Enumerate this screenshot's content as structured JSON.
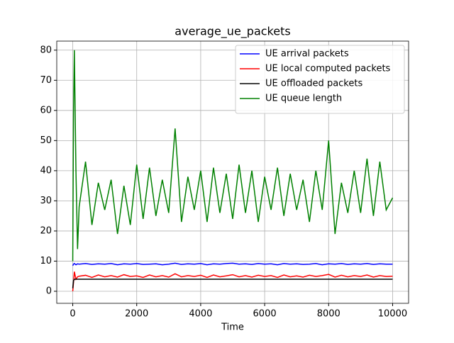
{
  "chart_data": {
    "type": "line",
    "title": "average_ue_packets",
    "x_label": "Time",
    "x": [
      0,
      25,
      50,
      100,
      150,
      200,
      400,
      600,
      800,
      1000,
      1200,
      1400,
      1600,
      1800,
      2000,
      2200,
      2400,
      2600,
      2800,
      3000,
      3200,
      3400,
      3600,
      3800,
      4000,
      4200,
      4400,
      4600,
      4800,
      5000,
      5200,
      5400,
      5600,
      5800,
      6000,
      6200,
      6400,
      6600,
      6800,
      7000,
      7200,
      7400,
      7600,
      7800,
      8000,
      8200,
      8400,
      8600,
      8800,
      9000,
      9200,
      9400,
      9600,
      9800,
      10000
    ],
    "series": [
      {
        "name": "UE arrival packets",
        "color": "#0000ff",
        "values": [
          8.5,
          9,
          9.2,
          8.8,
          9.1,
          9,
          9.2,
          8.9,
          9.1,
          9,
          9.2,
          8.8,
          9.1,
          9,
          9.2,
          8.9,
          9,
          9.1,
          8.8,
          9,
          9.3,
          8.9,
          9.1,
          9,
          9.2,
          8.8,
          9.1,
          9,
          9.2,
          9.3,
          9,
          9.1,
          8.9,
          9.2,
          9,
          9.1,
          8.8,
          9.2,
          9,
          9.1,
          8.9,
          9,
          9.2,
          8.8,
          9.1,
          9,
          9.2,
          8.9,
          9.1,
          9,
          9.2,
          8.9,
          9.1,
          9,
          9
        ]
      },
      {
        "name": "UE local computed packets",
        "color": "#ff0000",
        "values": [
          0,
          3,
          6.5,
          4,
          4.8,
          5,
          5.3,
          4.6,
          5.4,
          4.8,
          5.2,
          4.7,
          5.5,
          4.9,
          5.1,
          4.6,
          5.4,
          4.8,
          5.2,
          4.7,
          5.8,
          4.8,
          5.2,
          4.9,
          5.3,
          4.6,
          5.4,
          4.8,
          5.1,
          5.5,
          4.8,
          5.2,
          4.7,
          5.3,
          4.9,
          5.2,
          4.6,
          5.4,
          4.8,
          5.1,
          4.7,
          5.3,
          4.9,
          5.2,
          5.6,
          4.7,
          5.3,
          4.8,
          5.2,
          4.9,
          5.4,
          4.7,
          5.2,
          4.9,
          5
        ]
      },
      {
        "name": "UE offloaded packets",
        "color": "#000000",
        "values": [
          1,
          3.5,
          4,
          4,
          4,
          4,
          4,
          4,
          4,
          4,
          4,
          4,
          4,
          4,
          4,
          4,
          4,
          4,
          4,
          4,
          4,
          4,
          4,
          4,
          4,
          4,
          4,
          4,
          4,
          4,
          4,
          4,
          4,
          4,
          4,
          4,
          4,
          4,
          4,
          4,
          4,
          4,
          4,
          4,
          4,
          4,
          4,
          4,
          4,
          4,
          4,
          4,
          4,
          4,
          4
        ]
      },
      {
        "name": "UE queue length",
        "color": "#008000",
        "values": [
          10,
          60,
          80,
          40,
          14,
          28,
          43,
          22,
          36,
          27,
          37,
          19,
          35,
          22,
          42,
          24,
          41,
          25,
          37,
          26,
          54,
          23,
          38,
          27,
          40,
          23,
          41,
          26,
          39,
          24,
          42,
          26,
          40,
          23,
          38,
          27,
          41,
          25,
          39,
          27,
          37,
          23,
          40,
          27,
          50,
          19,
          36,
          26,
          40,
          26,
          44,
          25,
          43,
          27,
          31
        ]
      }
    ],
    "xlim": [
      -500,
      10500
    ],
    "ylim": [
      -4,
      83
    ],
    "xticks": [
      0,
      2000,
      4000,
      6000,
      8000,
      10000
    ],
    "yticks": [
      0,
      10,
      20,
      30,
      40,
      50,
      60,
      70,
      80
    ],
    "grid": true,
    "legend": "upper right"
  }
}
